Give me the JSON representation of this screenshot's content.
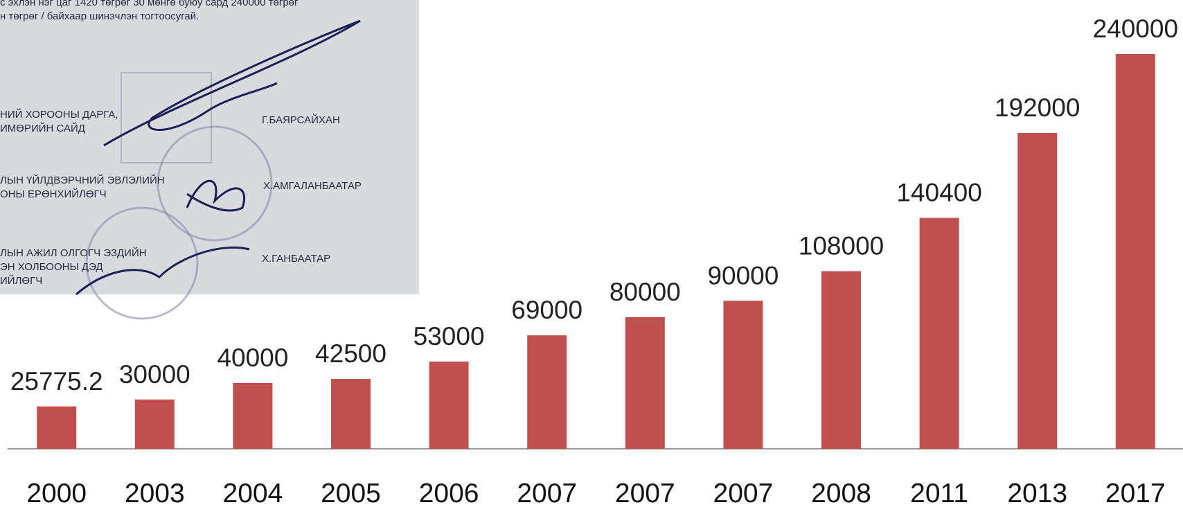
{
  "chart_data": {
    "type": "bar",
    "categories": [
      "2000",
      "2003",
      "2004",
      "2005",
      "2006",
      "2007",
      "2007",
      "2007",
      "2008",
      "2011",
      "2013",
      "2017"
    ],
    "values": [
      25775.2,
      30000,
      40000,
      42500,
      53000,
      69000,
      80000,
      90000,
      108000,
      140400,
      192000,
      240000
    ],
    "color": "#c0504d"
  },
  "photo": {
    "lines": [
      "с эхлэн нэг цаг 1420 төгрөг 30 мөнгө буюу сард 240000 төгрөг",
      "н төгрөг / байхаар шинэчлэн тогтоосугай."
    ],
    "signatories": [
      {
        "title": [
          "НИЙ ХОРООНЫ ДАРГА,",
          "ИМӨРИЙН САЙД"
        ],
        "name": "Г.БАЯРСАЙХАН"
      },
      {
        "title": [
          "ЛЫН ҮЙЛДВЭРЧНИЙ ЭВЛЭЛИЙН",
          "ОНЫ ЕРӨНХИЙЛӨГЧ"
        ],
        "name": "Х.АМГАЛАНБААТАР"
      },
      {
        "title": [
          "ЛЫН АЖИЛ ОЛГОГЧ ЭЗДИЙН",
          "ЭН ХОЛБООНЫ ДЭД",
          "ИЙЛӨГЧ"
        ],
        "name": "Х.ГАНБААТАР"
      }
    ]
  }
}
